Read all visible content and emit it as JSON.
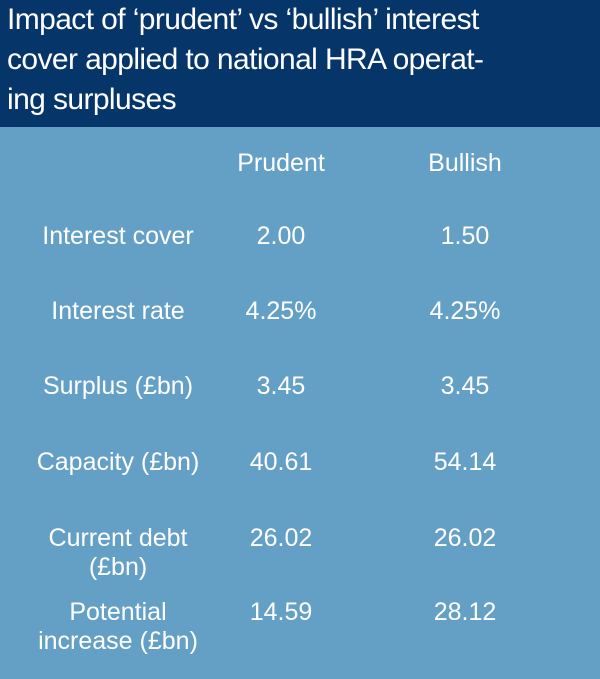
{
  "title_lines": [
    "Impact of ‘prudent’ vs ‘bullish’ interest",
    "cover applied to national HRA operat-",
    "ing surpluses"
  ],
  "columns": [
    "Prudent",
    "Bullish"
  ],
  "rows": [
    {
      "label": [
        "Interest cover"
      ],
      "prudent": "2.00",
      "bullish": "1.50"
    },
    {
      "label": [
        "Interest rate"
      ],
      "prudent": "4.25%",
      "bullish": "4.25%"
    },
    {
      "label": [
        "Surplus (£bn)"
      ],
      "prudent": "3.45",
      "bullish": "3.45"
    },
    {
      "label": [
        "Capacity (£bn)"
      ],
      "prudent": "40.61",
      "bullish": "54.14"
    },
    {
      "label": [
        "Current debt",
        "(£bn)"
      ],
      "prudent": "26.02",
      "bullish": "26.02"
    },
    {
      "label": [
        "Potential",
        "increase (£bn)"
      ],
      "prudent": "14.59",
      "bullish": "28.12"
    }
  ]
}
